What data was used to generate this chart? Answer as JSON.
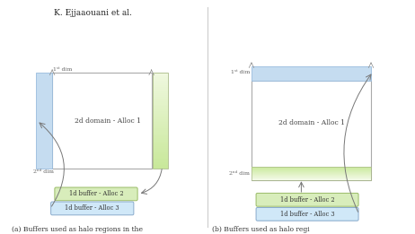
{
  "title": "K. Ejjaaouani et al.",
  "bg_color": "#ffffff",
  "panel_a_caption": "(a) Buffers used as halo regions in the\nfirst dimension",
  "panel_b_caption": "(b) Buffers used as halo regi\nthe second dimension",
  "domain_color": "#ffffff",
  "domain_edge_color": "#aaaaaa",
  "blue_halo_color": "#c5dcf0",
  "green_halo_color_a": "#d8edbb",
  "green_halo_color_b": "#d8edbb",
  "buffer2_color": "#d8edbb",
  "buffer3_color": "#d0e8f8",
  "label_1st_dim": "1ˢᵗ dim",
  "label_2nd_dim": "2ⁿᵈ dim",
  "label_domain": "2d domain - Alloc 1",
  "label_buffer2": "1d buffer - Alloc 2",
  "label_buffer3": "1d buffer - Alloc 3",
  "arrow_color": "#777777",
  "divider_color": "#cccccc",
  "text_color": "#444444",
  "dim_label_color": "#888888"
}
